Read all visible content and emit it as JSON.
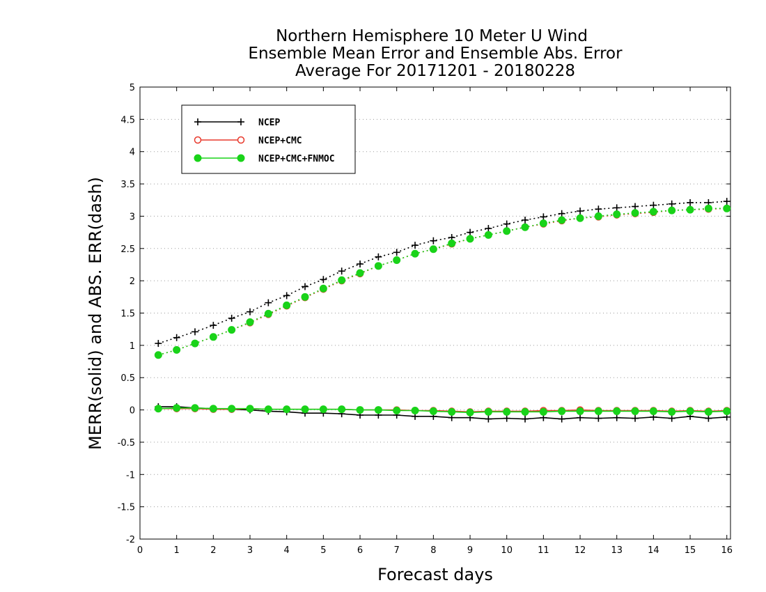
{
  "chart_data": {
    "type": "line",
    "title": [
      "Northern Hemisphere 10 Meter U Wind",
      "Ensemble Mean Error and Ensemble Abs. Error",
      "Average For 20171201 - 20180228"
    ],
    "xlabel": "Forecast days",
    "ylabel": "MERR(solid) and ABS. ERR(dash)",
    "xlim": [
      0,
      16.1
    ],
    "ylim": [
      -2,
      5
    ],
    "x_ticks": [
      "0",
      "1",
      "2",
      "3",
      "4",
      "5",
      "6",
      "7",
      "8",
      "9",
      "10",
      "11",
      "12",
      "13",
      "14",
      "15",
      "16"
    ],
    "y_ticks": [
      "5",
      "4.5",
      "4",
      "3.5",
      "3",
      "2.5",
      "2",
      "1.5",
      "1",
      "0.5",
      "0",
      "-0.5",
      "-1",
      "-1.5",
      "-2"
    ],
    "grid": "horizontal dotted",
    "legend_position": "top-left",
    "x": [
      0.5,
      1,
      1.5,
      2,
      2.5,
      3,
      3.5,
      4,
      4.5,
      5,
      5.5,
      6,
      6.5,
      7,
      7.5,
      8,
      8.5,
      9,
      9.5,
      10,
      10.5,
      11,
      11.5,
      12,
      12.5,
      13,
      13.5,
      14,
      14.5,
      15,
      15.5,
      16
    ],
    "series": [
      {
        "name": "NCEP",
        "color": "#000000",
        "marker": "plus",
        "merr": [
          0.05,
          0.05,
          0.03,
          0.02,
          0.01,
          0.0,
          -0.02,
          -0.03,
          -0.05,
          -0.05,
          -0.06,
          -0.08,
          -0.08,
          -0.08,
          -0.1,
          -0.1,
          -0.12,
          -0.12,
          -0.14,
          -0.13,
          -0.14,
          -0.12,
          -0.14,
          -0.12,
          -0.13,
          -0.12,
          -0.13,
          -0.11,
          -0.13,
          -0.1,
          -0.13,
          -0.11
        ],
        "abs_err": [
          1.03,
          1.12,
          1.21,
          1.31,
          1.42,
          1.52,
          1.66,
          1.77,
          1.91,
          2.02,
          2.15,
          2.26,
          2.37,
          2.44,
          2.55,
          2.62,
          2.67,
          2.75,
          2.81,
          2.88,
          2.94,
          2.99,
          3.04,
          3.08,
          3.11,
          3.13,
          3.15,
          3.17,
          3.19,
          3.21,
          3.21,
          3.23
        ]
      },
      {
        "name": "NCEP+CMC",
        "color": "#e8392c",
        "marker": "open-circle",
        "merr": [
          0.02,
          0.02,
          0.02,
          0.01,
          0.01,
          0.02,
          0.01,
          0.01,
          0.01,
          0.01,
          0.01,
          0.0,
          0.0,
          0.0,
          -0.01,
          -0.01,
          -0.02,
          -0.03,
          -0.02,
          -0.02,
          -0.02,
          -0.01,
          -0.01,
          0.0,
          -0.01,
          -0.01,
          -0.01,
          -0.01,
          -0.02,
          -0.01,
          -0.02,
          -0.01
        ],
        "abs_err": [
          0.85,
          0.93,
          1.03,
          1.13,
          1.24,
          1.35,
          1.48,
          1.61,
          1.74,
          1.87,
          2.0,
          2.11,
          2.23,
          2.32,
          2.42,
          2.49,
          2.57,
          2.65,
          2.71,
          2.77,
          2.83,
          2.88,
          2.93,
          2.97,
          2.99,
          3.02,
          3.04,
          3.06,
          3.09,
          3.1,
          3.11,
          3.12
        ]
      },
      {
        "name": "NCEP+CMC+FNMOC",
        "color": "#19d319",
        "marker": "filled-circle",
        "merr": [
          0.02,
          0.03,
          0.03,
          0.02,
          0.02,
          0.02,
          0.01,
          0.01,
          0.01,
          0.01,
          0.01,
          0.0,
          0.0,
          -0.01,
          -0.01,
          -0.02,
          -0.03,
          -0.04,
          -0.03,
          -0.03,
          -0.03,
          -0.03,
          -0.02,
          -0.02,
          -0.02,
          -0.02,
          -0.02,
          -0.02,
          -0.03,
          -0.02,
          -0.03,
          -0.02
        ],
        "abs_err": [
          0.85,
          0.93,
          1.03,
          1.13,
          1.24,
          1.36,
          1.49,
          1.62,
          1.75,
          1.88,
          2.01,
          2.12,
          2.23,
          2.32,
          2.42,
          2.49,
          2.58,
          2.65,
          2.71,
          2.77,
          2.83,
          2.89,
          2.94,
          2.97,
          3.0,
          3.03,
          3.05,
          3.07,
          3.09,
          3.1,
          3.12,
          3.12
        ]
      }
    ]
  }
}
